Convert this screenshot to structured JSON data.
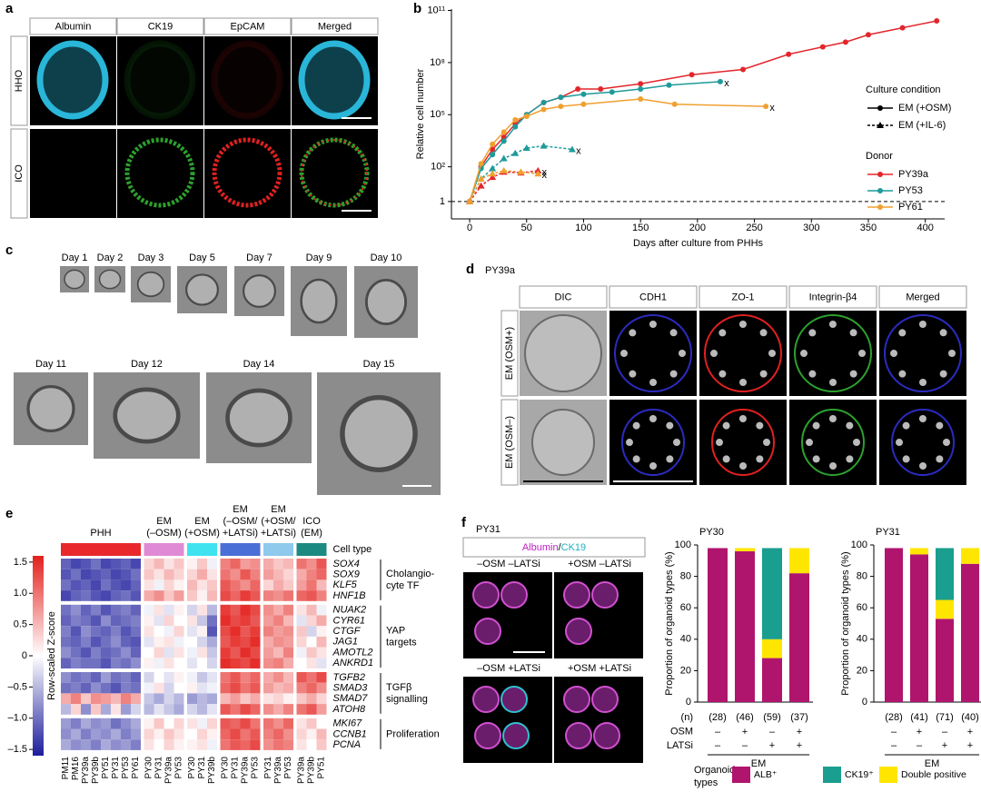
{
  "panels": {
    "a": {
      "letter": "a",
      "channels": [
        {
          "name": "Albumin",
          "color": "#29b6d8"
        },
        {
          "name": "CK19",
          "color": "#2ca02c"
        },
        {
          "name": "EpCAM",
          "color": "#e02020"
        },
        {
          "name": "Merged",
          "color": "#000000"
        }
      ],
      "rows": [
        "HHO",
        "ICO"
      ]
    },
    "c": {
      "letter": "c",
      "days": [
        "Day 1",
        "Day 2",
        "Day 3",
        "Day 5",
        "Day 7",
        "Day 9",
        "Day 10",
        "Day 11",
        "Day 12",
        "Day 14",
        "Day 15"
      ]
    },
    "d": {
      "letter": "d",
      "donor": "PY39a",
      "channels": [
        {
          "name": "DIC",
          "color": "#000000"
        },
        {
          "name": "CDH1",
          "color": "#2b2bbf"
        },
        {
          "name": "ZO-1",
          "color": "#e02020"
        },
        {
          "name": "Integrin-β4",
          "color": "#2ca02c"
        },
        {
          "name": "Merged",
          "color": "#000000"
        }
      ],
      "rows": [
        "EM (OSM+)",
        "EM (OSM–)"
      ]
    },
    "f": {
      "letter": "f",
      "donor": "PY31",
      "stain": [
        {
          "text": "Albumin",
          "color": "#c020c0"
        },
        {
          "text": "/",
          "color": "#000000"
        },
        {
          "text": "CK19",
          "color": "#1fb0c0"
        }
      ],
      "conditions": [
        "–OSM –LATSi",
        "+OSM –LATSi",
        "–OSM +LATSi",
        "+OSM +LATSi"
      ]
    }
  },
  "chart_data": [
    {
      "type": "line",
      "letter": "b",
      "x_label": "Days after culture from PHHs",
      "y_label": "Relative cell number",
      "log_y": true,
      "xlim": [
        -16,
        417
      ],
      "ylim": [
        0.1,
        120000000000.0
      ],
      "xticks": [
        0,
        50,
        100,
        150,
        200,
        250,
        300,
        350,
        400
      ],
      "yticks": [
        1,
        {
          "value": 100,
          "label": "10²"
        },
        {
          "value": 100000,
          "label": "10⁵"
        },
        {
          "value": 100000000,
          "label": "10⁸"
        },
        {
          "value": 100000000000,
          "label": "10¹¹"
        }
      ],
      "reference_line": 1,
      "end_marker": "x",
      "legend": {
        "condition_title": "Culture condition",
        "conditions": [
          {
            "name": "EM (+OSM)",
            "marker": "circle",
            "dash": false
          },
          {
            "name": "EM (+IL-6)",
            "marker": "triangle",
            "dash": true
          }
        ],
        "donor_title": "Donor",
        "donors": [
          {
            "name": "PY39a",
            "color": "#e3262b"
          },
          {
            "name": "PY53",
            "color": "#1f9a9a"
          },
          {
            "name": "PY61",
            "color": "#f0a030"
          }
        ]
      },
      "series": [
        {
          "donor": "PY39a",
          "condition": "EM (+OSM)",
          "terminated": false,
          "x": [
            0,
            10,
            20,
            30,
            40,
            50,
            65,
            80,
            95,
            115,
            150,
            195,
            240,
            280,
            310,
            330,
            350,
            380,
            410
          ],
          "values": [
            1,
            100,
            1000,
            5000,
            30000,
            100000,
            500000,
            1000000,
            3000000,
            3000000,
            6000000,
            20000000,
            40000000,
            300000000,
            800000000,
            1500000000,
            4000000000,
            10000000000,
            25000000000
          ]
        },
        {
          "donor": "PY53",
          "condition": "EM (+OSM)",
          "terminated": true,
          "x": [
            0,
            10,
            20,
            30,
            40,
            50,
            65,
            80,
            100,
            125,
            150,
            175,
            220
          ],
          "values": [
            1,
            80,
            500,
            3000,
            20000,
            100000,
            500000,
            1000000,
            1500000,
            2000000,
            3000000,
            5000000,
            8000000
          ]
        },
        {
          "donor": "PY61",
          "condition": "EM (+OSM)",
          "terminated": true,
          "x": [
            0,
            10,
            20,
            30,
            40,
            50,
            65,
            80,
            100,
            150,
            180,
            260
          ],
          "values": [
            1,
            150,
            2000,
            10000,
            50000,
            80000,
            200000,
            300000,
            400000,
            800000,
            400000,
            300000
          ]
        },
        {
          "donor": "PY53",
          "condition": "EM (+IL-6)",
          "terminated": true,
          "x": [
            0,
            10,
            20,
            30,
            40,
            50,
            65,
            90
          ],
          "values": [
            1,
            20,
            80,
            300,
            600,
            1200,
            1600,
            1000
          ]
        },
        {
          "donor": "PY39a",
          "condition": "EM (+IL-6)",
          "terminated": true,
          "x": [
            0,
            10,
            20,
            30,
            45,
            60
          ],
          "values": [
            1,
            8,
            25,
            50,
            45,
            60
          ]
        },
        {
          "donor": "PY61",
          "condition": "EM (+IL-6)",
          "terminated": true,
          "x": [
            0,
            10,
            20,
            30,
            45,
            60
          ],
          "values": [
            1,
            20,
            40,
            60,
            50,
            40
          ]
        }
      ]
    },
    {
      "type": "heatmap",
      "letter": "e",
      "cell_type_label": "Cell type",
      "colorbar_label": "Row-scaled Z-score",
      "zlim": [
        -1.6,
        1.6
      ],
      "colormap": [
        "#1c1c9c",
        "#ffffff",
        "#e3201c"
      ],
      "zticks": [
        1.5,
        {
          "value": 1,
          "label": "1.0"
        },
        0.5,
        0,
        {
          "value": -0.5,
          "label": "–0.5"
        },
        {
          "value": -1,
          "label": "–1.0"
        },
        {
          "value": -1.5,
          "label": "–1.5"
        }
      ],
      "groups": [
        {
          "label": [
            "PHH"
          ],
          "color": "#e8282b",
          "samples": [
            "PM11",
            "PM16",
            "PY39a",
            "PY39b",
            "PY51",
            "PY31",
            "PY53",
            "PY61"
          ]
        },
        {
          "label": [
            "EM",
            "(–OSM)"
          ],
          "color": "#e08ad6",
          "samples": [
            "PY30",
            "PY31",
            "PY39a",
            "PY53"
          ]
        },
        {
          "label": [
            "EM",
            "(+OSM)"
          ],
          "color": "#3fe3ef",
          "samples": [
            "PY30",
            "PY31",
            "PY39b"
          ]
        },
        {
          "label": [
            "EM",
            "(–OSM/",
            "+LATSi)"
          ],
          "color": "#4a6fd6",
          "samples": [
            "PY30",
            "PY31",
            "PY39a",
            "PY53"
          ]
        },
        {
          "label": [
            "EM",
            "(+OSM/",
            "+LATSi)"
          ],
          "color": "#8fc9ec",
          "samples": [
            "PY31",
            "PY39a",
            "PY53"
          ]
        },
        {
          "label": [
            "ICO",
            "(EM)"
          ],
          "color": "#1c8a80",
          "samples": [
            "PY39a",
            "PY39b",
            "PY51"
          ]
        }
      ],
      "row_groups": [
        {
          "label": [
            "Cholangio-",
            "cyte TF"
          ],
          "genes": [
            "SOX4",
            "SOX9",
            "KLF5",
            "HNF1B"
          ]
        },
        {
          "label": [
            "YAP",
            "targets"
          ],
          "genes": [
            "NUAK2",
            "CYR61",
            "CTGF",
            "JAG1",
            "AMOTL2",
            "ANKRD1"
          ]
        },
        {
          "label": [
            "TGFβ",
            "signalling"
          ],
          "genes": [
            "TGFB2",
            "SMAD3",
            "SMAD7",
            "ATOH8"
          ]
        },
        {
          "label": [
            "Proliferation"
          ],
          "genes": [
            "MKI67",
            "CCNB1",
            "PCNA"
          ]
        }
      ],
      "values": [
        [
          -1.1,
          -1.3,
          -1.2,
          -1.0,
          -1.3,
          -1.2,
          -1.1,
          -1.3,
          0.3,
          0.5,
          0.2,
          0.4,
          0.1,
          0.4,
          -0.1,
          0.9,
          1.1,
          0.7,
          0.8,
          0.6,
          0.4,
          0.5,
          1.0,
          0.8,
          1.2
        ],
        [
          -1.2,
          -1.0,
          -1.3,
          -1.2,
          -1.1,
          -1.3,
          -1.2,
          -1.0,
          0.4,
          0.2,
          0.5,
          0.3,
          0.3,
          0.6,
          0.2,
          1.0,
          0.8,
          1.2,
          0.9,
          0.7,
          0.5,
          0.3,
          0.6,
          0.9,
          1.1
        ],
        [
          -1.0,
          -1.2,
          -1.1,
          -1.3,
          -1.0,
          -1.2,
          -1.3,
          -1.1,
          0.2,
          -0.1,
          0.3,
          0.1,
          0.5,
          0.2,
          0.4,
          1.2,
          1.0,
          0.8,
          1.1,
          0.3,
          0.6,
          0.4,
          0.7,
          1.0,
          0.5
        ],
        [
          -1.3,
          -1.1,
          -1.0,
          -1.2,
          -1.3,
          -1.1,
          -1.0,
          -1.2,
          0.6,
          0.8,
          0.4,
          0.7,
          0.4,
          0.1,
          0.5,
          1.3,
          1.1,
          1.4,
          1.2,
          0.9,
          0.8,
          1.0,
          1.1,
          1.2,
          0.9
        ],
        [
          -1.0,
          -0.8,
          -1.1,
          -0.9,
          -1.2,
          -1.0,
          -0.9,
          -1.1,
          -0.1,
          0.2,
          -0.2,
          0.1,
          -0.3,
          0.2,
          -0.5,
          1.4,
          1.2,
          1.5,
          1.3,
          0.8,
          0.6,
          0.9,
          0.2,
          0.5,
          -0.1
        ],
        [
          -1.1,
          -0.9,
          -1.0,
          -1.2,
          -0.8,
          -1.1,
          -1.0,
          -0.9,
          0.1,
          -0.2,
          0.3,
          0.0,
          0.2,
          -0.4,
          -1.0,
          1.5,
          1.3,
          1.4,
          1.2,
          0.7,
          0.9,
          0.5,
          -0.2,
          0.3,
          0.6
        ],
        [
          -0.9,
          -1.2,
          -0.8,
          -1.0,
          -1.1,
          -0.9,
          -1.2,
          -1.0,
          0.2,
          0.0,
          -0.1,
          0.3,
          -0.2,
          0.1,
          -1.2,
          1.3,
          1.5,
          1.2,
          1.4,
          0.9,
          0.7,
          0.8,
          0.4,
          -0.3,
          0.1
        ],
        [
          -1.0,
          -1.1,
          -0.9,
          -1.2,
          -1.0,
          -0.8,
          -1.1,
          -1.2,
          -0.2,
          0.1,
          0.2,
          -0.1,
          0.0,
          -0.3,
          -0.6,
          1.2,
          1.4,
          1.3,
          1.5,
          0.6,
          0.8,
          0.7,
          0.3,
          0.0,
          0.5
        ],
        [
          -0.8,
          -1.0,
          -1.2,
          -0.9,
          -1.1,
          -1.0,
          -0.8,
          -1.1,
          0.0,
          0.3,
          -0.2,
          0.2,
          -0.1,
          0.2,
          -0.4,
          1.4,
          1.2,
          1.5,
          1.3,
          0.7,
          0.5,
          0.9,
          -0.1,
          0.4,
          0.2
        ],
        [
          -1.1,
          -0.9,
          -1.0,
          -1.0,
          -1.2,
          -0.9,
          -1.0,
          -0.8,
          0.1,
          -0.1,
          0.2,
          0.0,
          -0.2,
          0.0,
          -0.3,
          1.5,
          1.4,
          1.3,
          1.5,
          0.8,
          0.9,
          0.6,
          0.0,
          0.2,
          -0.2
        ],
        [
          -0.8,
          -1.0,
          -0.9,
          -1.1,
          -0.7,
          -1.0,
          -0.9,
          -1.1,
          -0.3,
          0.0,
          -0.2,
          0.1,
          -0.1,
          -0.4,
          -0.2,
          1.0,
          1.2,
          0.9,
          1.1,
          0.6,
          0.8,
          0.5,
          1.2,
          1.0,
          1.3
        ],
        [
          -1.0,
          -0.9,
          -1.1,
          -0.8,
          -1.0,
          -1.2,
          -0.9,
          -1.0,
          -0.1,
          0.2,
          -0.3,
          0.0,
          0.1,
          -0.2,
          -0.1,
          1.1,
          1.3,
          1.0,
          1.2,
          0.7,
          0.5,
          0.6,
          0.9,
          1.1,
          0.8
        ],
        [
          0.6,
          0.9,
          0.4,
          0.8,
          0.7,
          0.5,
          0.9,
          0.6,
          -0.4,
          -0.6,
          -0.3,
          -0.5,
          -0.7,
          -0.5,
          -0.6,
          0.5,
          0.7,
          0.4,
          0.6,
          0.2,
          0.3,
          0.1,
          0.4,
          0.6,
          0.3
        ],
        [
          -0.5,
          0.3,
          -0.8,
          0.4,
          -0.6,
          0.2,
          -0.7,
          -0.3,
          -0.5,
          -0.2,
          -0.4,
          -0.6,
          -0.3,
          -0.5,
          -0.2,
          1.2,
          1.0,
          1.3,
          1.1,
          0.8,
          0.6,
          0.9,
          1.0,
          1.2,
          0.7
        ],
        [
          -0.7,
          -0.9,
          -0.6,
          -0.8,
          -0.7,
          -1.0,
          -0.8,
          -0.6,
          0.1,
          0.4,
          0.0,
          0.3,
          0.2,
          -0.1,
          0.3,
          1.2,
          1.1,
          1.3,
          1.0,
          1.0,
          0.8,
          1.1,
          0.2,
          0.4,
          0.0
        ],
        [
          -0.8,
          -0.6,
          -0.9,
          -0.7,
          -0.8,
          -0.6,
          -0.9,
          -0.7,
          0.3,
          0.1,
          0.4,
          0.2,
          0.0,
          0.3,
          0.1,
          1.1,
          1.3,
          1.0,
          1.2,
          0.9,
          1.1,
          0.8,
          0.3,
          0.1,
          0.5
        ],
        [
          -0.6,
          -0.8,
          -0.7,
          -0.9,
          -0.6,
          -0.8,
          -0.7,
          -0.9,
          0.2,
          0.0,
          0.3,
          0.1,
          0.1,
          0.2,
          -0.1,
          1.0,
          1.2,
          1.1,
          1.3,
          0.8,
          1.0,
          0.9,
          0.2,
          0.0,
          0.4
        ]
      ]
    },
    {
      "type": "stacked_bar",
      "title": "PY30",
      "y_label": "Proportion of organoid types (%)",
      "ylim": [
        0,
        100
      ],
      "yticks": [
        0,
        20,
        40,
        60,
        80,
        100
      ],
      "row_labels": [
        "(n)",
        "OSM",
        "LATSi"
      ],
      "categories": [
        "(28)",
        "(46)",
        "(59)",
        "(37)"
      ],
      "osm": [
        "–",
        "+",
        "–",
        "+"
      ],
      "latsi": [
        "–",
        "–",
        "+",
        "+"
      ],
      "group_label": "EM",
      "legend_title": [
        "Organoid",
        "types"
      ],
      "stack_order": [
        0,
        2,
        1
      ],
      "series": [
        {
          "name": "ALB⁺",
          "color": "#b0156e",
          "values": [
            98,
            96,
            28,
            82
          ]
        },
        {
          "name": "CK19⁺",
          "color": "#1a9e8f",
          "values": [
            0,
            0,
            58,
            0
          ]
        },
        {
          "name": "Double positive",
          "color": "#ffe600",
          "values": [
            0,
            2,
            12,
            16
          ]
        }
      ]
    },
    {
      "type": "stacked_bar",
      "title": "PY31",
      "y_label": "Proportion of organoid types (%)",
      "ylim": [
        0,
        100
      ],
      "yticks": [
        0,
        20,
        40,
        60,
        80,
        100
      ],
      "categories": [
        "(28)",
        "(41)",
        "(71)",
        "(40)"
      ],
      "osm": [
        "–",
        "+",
        "–",
        "+"
      ],
      "latsi": [
        "–",
        "–",
        "+",
        "+"
      ],
      "group_label": "EM",
      "stack_order": [
        0,
        2,
        1
      ],
      "series": [
        {
          "color": "#b0156e",
          "values": [
            98,
            94,
            53,
            88
          ]
        },
        {
          "color": "#1a9e8f",
          "values": [
            0,
            0,
            33,
            0
          ]
        },
        {
          "color": "#ffe600",
          "values": [
            0,
            4,
            12,
            10
          ]
        }
      ]
    }
  ]
}
